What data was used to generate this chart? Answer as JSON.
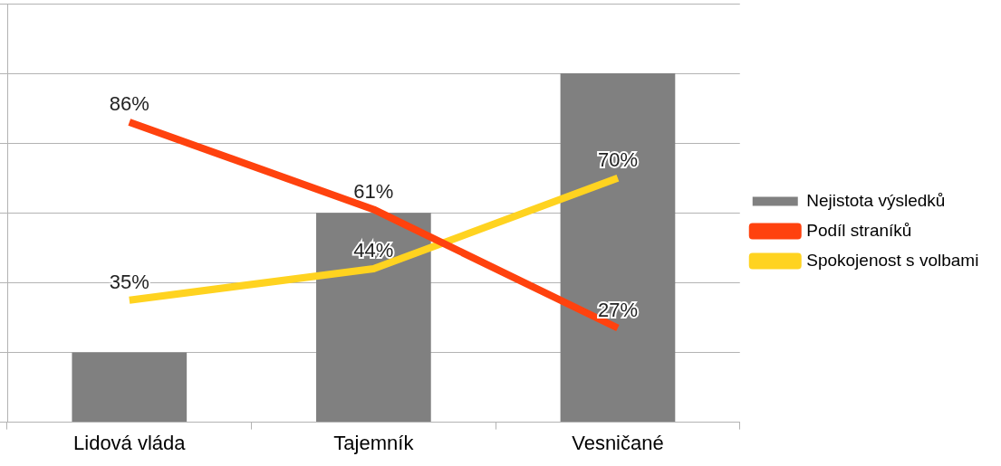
{
  "chart_data": {
    "type": "bar",
    "categories": [
      "Lidová vláda",
      "Tajemník",
      "Vesničané"
    ],
    "series": [
      {
        "name": "Nejistota výsledků",
        "color": "#808080",
        "values": [
          20,
          60,
          100
        ]
      },
      {
        "name": "Podíl straníků",
        "type": "line",
        "color": "#ff420e",
        "values": [
          86,
          61,
          27
        ],
        "value_labels": [
          "86%",
          "61%",
          "27%"
        ]
      },
      {
        "name": "Spokojenost s volbami",
        "type": "line",
        "color": "#ffd320",
        "values": [
          35,
          44,
          70
        ],
        "value_labels": [
          "35%",
          "44%",
          "70%"
        ]
      }
    ],
    "ylim": [
      0,
      120
    ],
    "yticks": [
      {
        "value": 0,
        "label": null
      },
      {
        "value": 20,
        "label": null
      },
      {
        "value": 40,
        "label": null
      },
      {
        "value": 60,
        "label": null
      },
      {
        "value": 80,
        "label": null
      },
      {
        "value": 100,
        "label": null
      },
      {
        "value": 120,
        "label": null
      }
    ],
    "tick_labels": "x",
    "grid": "y",
    "legend": "right"
  }
}
